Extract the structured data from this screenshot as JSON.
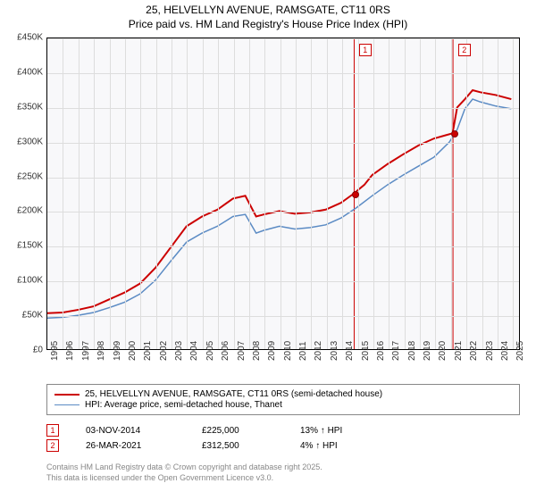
{
  "title_line1": "25, HELVELLYN AVENUE, RAMSGATE, CT11 0RS",
  "title_line2": "Price paid vs. HM Land Registry's House Price Index (HPI)",
  "chart": {
    "type": "line",
    "background_color": "#f8f8fa",
    "grid_color": "#dddddd",
    "border_color": "#000000",
    "xlim": [
      1995,
      2025.5
    ],
    "ylim": [
      0,
      450000
    ],
    "ytick_step": 50000,
    "ytick_labels": [
      "£0",
      "£50K",
      "£100K",
      "£150K",
      "£200K",
      "£250K",
      "£300K",
      "£350K",
      "£400K",
      "£450K"
    ],
    "xtick_step": 1,
    "xtick_labels": [
      "1995",
      "1996",
      "1997",
      "1998",
      "1999",
      "2000",
      "2001",
      "2002",
      "2003",
      "2004",
      "2005",
      "2006",
      "2007",
      "2008",
      "2009",
      "2010",
      "2011",
      "2012",
      "2013",
      "2014",
      "2015",
      "2016",
      "2017",
      "2018",
      "2019",
      "2020",
      "2021",
      "2022",
      "2023",
      "2024",
      "2025"
    ],
    "label_fontsize": 10,
    "series": [
      {
        "name": "price_paid",
        "legend": "25, HELVELLYN AVENUE, RAMSGATE, CT11 0RS (semi-detached house)",
        "color": "#cc0000",
        "line_width": 2,
        "points": [
          [
            1995,
            52000
          ],
          [
            1996,
            53000
          ],
          [
            1997,
            57000
          ],
          [
            1998,
            62000
          ],
          [
            1999,
            72000
          ],
          [
            2000,
            82000
          ],
          [
            2001,
            95000
          ],
          [
            2002,
            118000
          ],
          [
            2003,
            148000
          ],
          [
            2004,
            178000
          ],
          [
            2005,
            192000
          ],
          [
            2006,
            202000
          ],
          [
            2007,
            218000
          ],
          [
            2007.8,
            222000
          ],
          [
            2008.5,
            192000
          ],
          [
            2009,
            195000
          ],
          [
            2010,
            200000
          ],
          [
            2011,
            196000
          ],
          [
            2012,
            198000
          ],
          [
            2013,
            202000
          ],
          [
            2014,
            212000
          ],
          [
            2014.8,
            225000
          ],
          [
            2015.5,
            238000
          ],
          [
            2016,
            252000
          ],
          [
            2017,
            268000
          ],
          [
            2018,
            282000
          ],
          [
            2019,
            295000
          ],
          [
            2020,
            305000
          ],
          [
            2020.8,
            310000
          ],
          [
            2021.2,
            312500
          ],
          [
            2021.5,
            350000
          ],
          [
            2022,
            362000
          ],
          [
            2022.5,
            375000
          ],
          [
            2023,
            372000
          ],
          [
            2024,
            368000
          ],
          [
            2025,
            362000
          ]
        ]
      },
      {
        "name": "hpi",
        "legend": "HPI: Average price, semi-detached house, Thanet",
        "color": "#5b8bc4",
        "line_width": 1.5,
        "points": [
          [
            1995,
            45000
          ],
          [
            1996,
            46000
          ],
          [
            1997,
            49000
          ],
          [
            1998,
            53000
          ],
          [
            1999,
            60000
          ],
          [
            2000,
            68000
          ],
          [
            2001,
            80000
          ],
          [
            2002,
            100000
          ],
          [
            2003,
            128000
          ],
          [
            2004,
            155000
          ],
          [
            2005,
            168000
          ],
          [
            2006,
            178000
          ],
          [
            2007,
            192000
          ],
          [
            2007.8,
            195000
          ],
          [
            2008.5,
            168000
          ],
          [
            2009,
            172000
          ],
          [
            2010,
            178000
          ],
          [
            2011,
            174000
          ],
          [
            2012,
            176000
          ],
          [
            2013,
            180000
          ],
          [
            2014,
            190000
          ],
          [
            2015,
            205000
          ],
          [
            2016,
            222000
          ],
          [
            2017,
            238000
          ],
          [
            2018,
            252000
          ],
          [
            2019,
            265000
          ],
          [
            2020,
            278000
          ],
          [
            2021,
            300000
          ],
          [
            2021.5,
            318000
          ],
          [
            2022,
            348000
          ],
          [
            2022.5,
            362000
          ],
          [
            2023,
            358000
          ],
          [
            2024,
            352000
          ],
          [
            2025,
            348000
          ]
        ]
      }
    ],
    "markers": [
      {
        "num": "1",
        "x": 2014.84,
        "line_color": "#cc0000",
        "dot_y": 225000
      },
      {
        "num": "2",
        "x": 2021.23,
        "line_color": "#cc0000",
        "dot_y": 312500
      }
    ]
  },
  "events": [
    {
      "num": "1",
      "date": "03-NOV-2014",
      "price": "£225,000",
      "delta": "13% ↑ HPI"
    },
    {
      "num": "2",
      "date": "26-MAR-2021",
      "price": "£312,500",
      "delta": "4% ↑ HPI"
    }
  ],
  "attribution_line1": "Contains HM Land Registry data © Crown copyright and database right 2025.",
  "attribution_line2": "This data is licensed under the Open Government Licence v3.0."
}
